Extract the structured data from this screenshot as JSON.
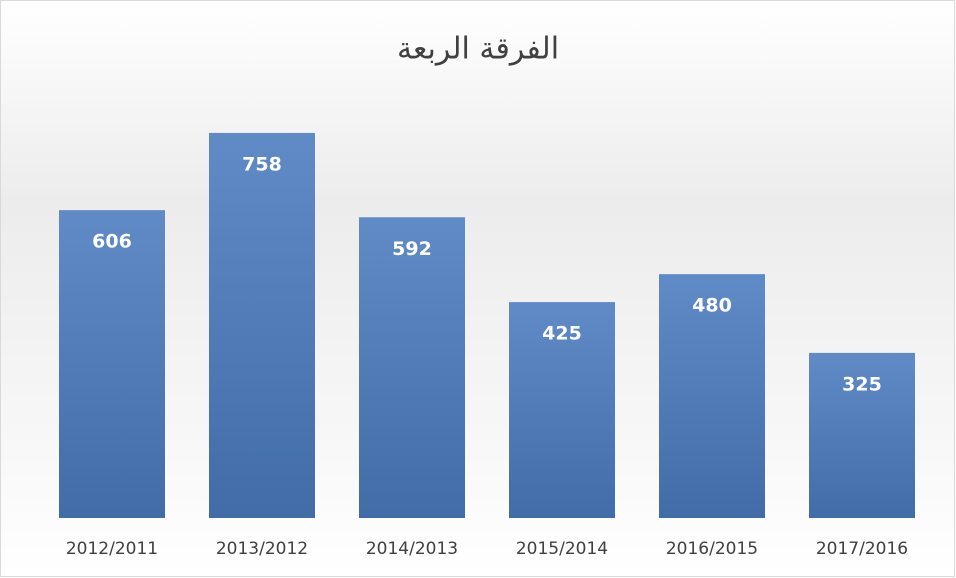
{
  "chart_data": {
    "type": "bar",
    "title": "الفرقة الربعة",
    "categories": [
      "2012/2011",
      "2013/2012",
      "2014/2013",
      "2015/2014",
      "2016/2015",
      "2017/2016"
    ],
    "values": [
      606,
      758,
      592,
      425,
      480,
      325
    ],
    "color": "#4a7bbf"
  }
}
